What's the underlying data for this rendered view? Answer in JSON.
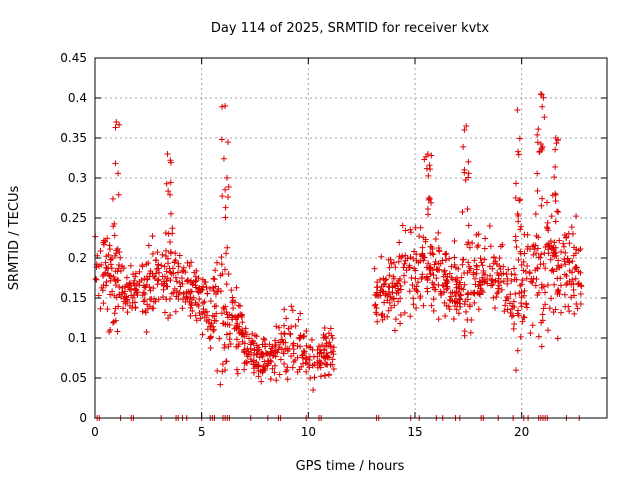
{
  "chart_data": {
    "type": "scatter",
    "title": "Day 114 of 2025, SRMTID for receiver kvtx",
    "xlabel": "GPS time / hours",
    "ylabel": "SRMTID / TECUs",
    "xlim": [
      0,
      24
    ],
    "ylim": [
      0,
      0.45
    ],
    "xticks": [
      0,
      5,
      10,
      15,
      20
    ],
    "xtick_labels": [
      "0",
      "5",
      "10",
      "15",
      "20"
    ],
    "yticks": [
      0,
      0.05,
      0.1,
      0.15,
      0.2,
      0.25,
      0.3,
      0.35,
      0.4,
      0.45
    ],
    "ytick_labels": [
      "0",
      "0.05",
      "0.1",
      "0.15",
      "0.2",
      "0.25",
      "0.3",
      "0.35",
      "0.4",
      "0.45"
    ],
    "grid": true,
    "marker": "+",
    "color": "#e00000",
    "data_gap_hours": [
      11.2,
      13.1
    ],
    "series_envelope": {
      "hours": [
        0,
        0.5,
        1.0,
        1.5,
        2.0,
        2.5,
        3.0,
        3.5,
        4.0,
        4.5,
        5.0,
        5.5,
        6.0,
        6.5,
        7.0,
        7.5,
        8.0,
        8.5,
        9.0,
        9.5,
        10.0,
        10.5,
        11.0,
        13.3,
        13.8,
        14.3,
        14.8,
        15.3,
        15.8,
        16.3,
        16.8,
        17.3,
        17.8,
        18.3,
        18.8,
        19.3,
        19.8,
        20.3,
        20.8,
        21.3,
        21.8,
        22.3,
        22.8
      ],
      "baseline": [
        0.2,
        0.18,
        0.17,
        0.16,
        0.16,
        0.17,
        0.17,
        0.18,
        0.17,
        0.16,
        0.15,
        0.13,
        0.14,
        0.12,
        0.09,
        0.08,
        0.07,
        0.08,
        0.1,
        0.09,
        0.08,
        0.07,
        0.08,
        0.15,
        0.16,
        0.17,
        0.18,
        0.19,
        0.18,
        0.17,
        0.16,
        0.17,
        0.17,
        0.17,
        0.18,
        0.17,
        0.16,
        0.17,
        0.18,
        0.19,
        0.19,
        0.18,
        0.17
      ],
      "spread": [
        0.05,
        0.07,
        0.1,
        0.05,
        0.05,
        0.06,
        0.06,
        0.09,
        0.06,
        0.05,
        0.06,
        0.06,
        0.13,
        0.06,
        0.04,
        0.04,
        0.04,
        0.04,
        0.06,
        0.05,
        0.05,
        0.04,
        0.05,
        0.05,
        0.06,
        0.07,
        0.09,
        0.08,
        0.07,
        0.06,
        0.06,
        0.1,
        0.07,
        0.06,
        0.07,
        0.07,
        0.12,
        0.07,
        0.14,
        0.12,
        0.09,
        0.08,
        0.08
      ],
      "peaks": [
        {
          "hour": 1.0,
          "value": 0.37
        },
        {
          "hour": 3.4,
          "value": 0.33
        },
        {
          "hour": 6.1,
          "value": 0.39
        },
        {
          "hour": 15.6,
          "value": 0.33
        },
        {
          "hour": 17.4,
          "value": 0.365
        },
        {
          "hour": 19.8,
          "value": 0.385
        },
        {
          "hour": 20.9,
          "value": 0.405
        },
        {
          "hour": 21.6,
          "value": 0.35
        }
      ]
    },
    "zero_markers_hours": [
      0.1,
      0.2,
      1.2,
      1.7,
      1.8,
      3.1,
      3.8,
      3.9,
      4.1,
      4.3,
      5.0,
      5.4,
      5.5,
      5.6,
      6.0,
      6.1,
      6.2,
      6.3,
      7.3,
      8.1,
      8.6,
      8.7,
      9.9,
      10.5,
      10.6,
      13.2,
      13.3,
      14.8,
      15.2,
      16.0,
      16.3,
      16.9,
      17.1,
      18.1,
      18.2,
      18.9,
      19.6,
      20.1,
      20.3,
      20.8,
      20.9,
      21.0,
      21.1,
      21.2,
      22.1,
      22.7
    ]
  }
}
